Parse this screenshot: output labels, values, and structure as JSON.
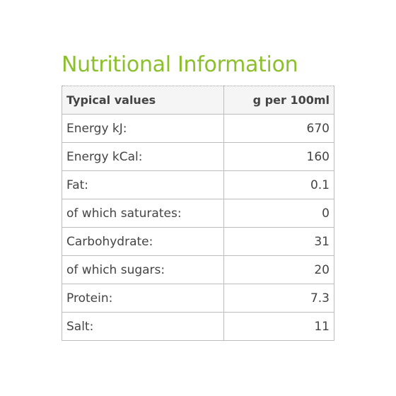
{
  "title": "Nutritional Information",
  "table": {
    "header": {
      "label": "Typical values",
      "value": "g per 100ml"
    },
    "rows": [
      {
        "label": "Energy kJ:",
        "value": "670"
      },
      {
        "label": "Energy kCal:",
        "value": "160"
      },
      {
        "label": "Fat:",
        "value": "0.1"
      },
      {
        "label": "of which saturates:",
        "value": "0"
      },
      {
        "label": "Carbohydrate:",
        "value": "31"
      },
      {
        "label": "of which sugars:",
        "value": "20"
      },
      {
        "label": "Protein:",
        "value": "7.3"
      },
      {
        "label": "Salt:",
        "value": "11"
      }
    ]
  },
  "colors": {
    "title": "#8cbf2e",
    "text": "#444444",
    "border": "#bdbdbd",
    "header_bg": "#f5f5f5"
  }
}
